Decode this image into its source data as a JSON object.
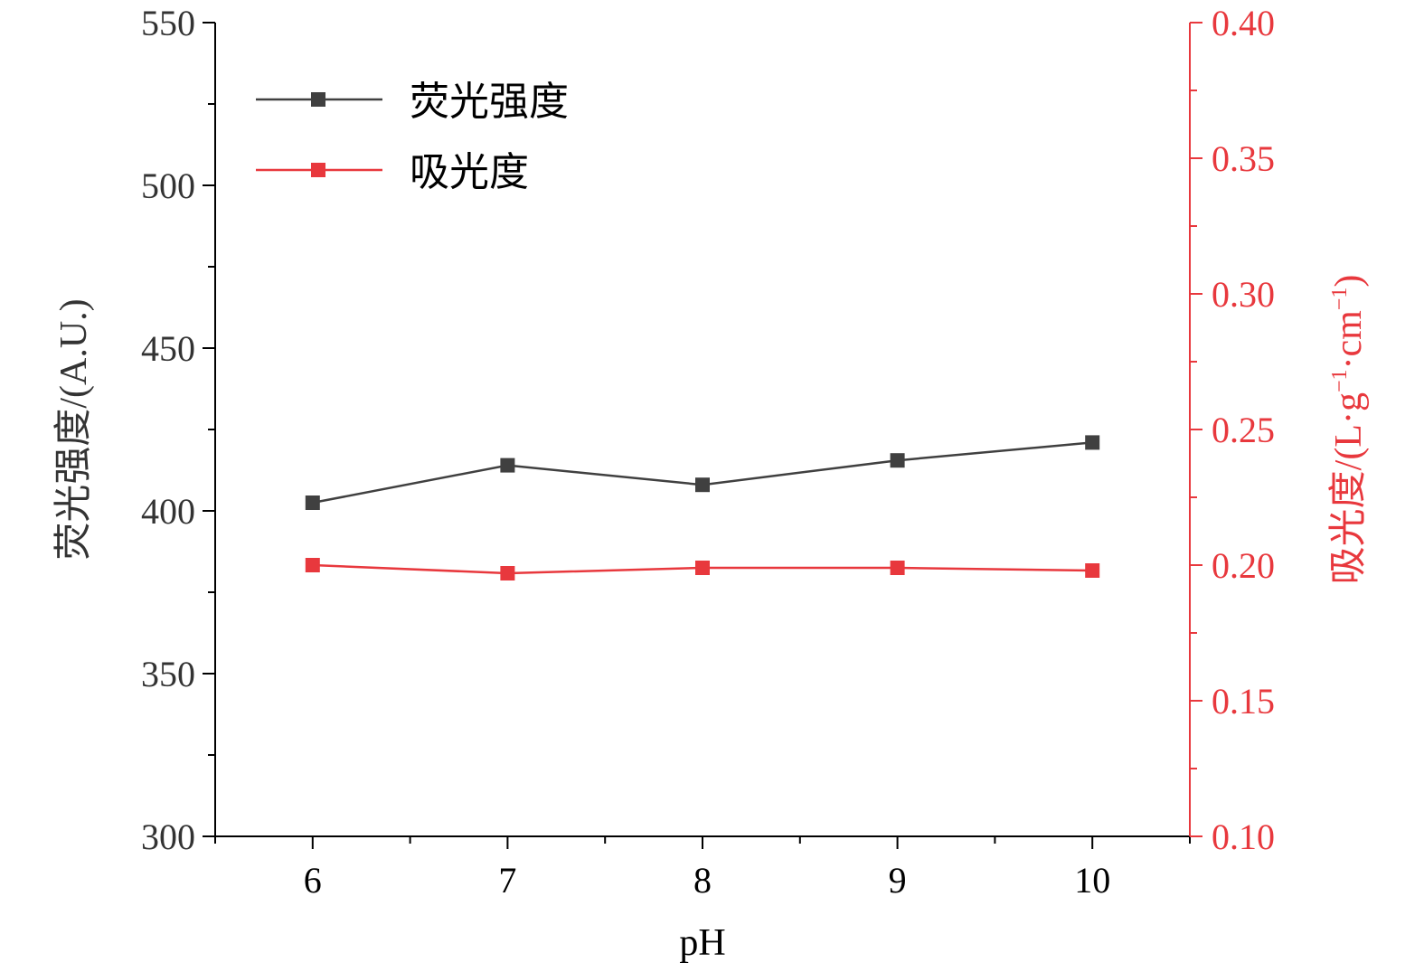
{
  "colors": {
    "axis": "#000000",
    "series_black": "#404040",
    "series_red": "#e8383d",
    "right_axis": "#e8383d"
  },
  "chart_data": {
    "type": "line",
    "x": [
      6,
      7,
      8,
      9,
      10
    ],
    "xlabel": "pH",
    "xlim": [
      5.5,
      10.5
    ],
    "xticks": [
      "6",
      "7",
      "8",
      "9",
      "10"
    ],
    "ylabel_left": "荧光强度/(A.U.)",
    "ylim_left": [
      300,
      550
    ],
    "yticks_left": [
      "300",
      "350",
      "400",
      "450",
      "500",
      "550"
    ],
    "ylabel_right": {
      "main": "吸光度/(L·g",
      "sup1": "−1",
      "mid": "·cm",
      "sup2": "−1",
      "end": ")"
    },
    "ylim_right": [
      0.1,
      0.4
    ],
    "yticks_right": [
      "0.10",
      "0.15",
      "0.20",
      "0.25",
      "0.30",
      "0.35",
      "0.40"
    ],
    "series": [
      {
        "name": "荧光强度",
        "axis": "left",
        "color": "#404040",
        "marker": "square",
        "values": [
          402.5,
          414.0,
          408.0,
          415.5,
          421.0
        ]
      },
      {
        "name": "吸光度",
        "axis": "right",
        "color": "#e8383d",
        "marker": "square",
        "values": [
          0.2,
          0.197,
          0.199,
          0.199,
          0.198
        ]
      }
    ],
    "legend": "top-left",
    "grid": false
  }
}
